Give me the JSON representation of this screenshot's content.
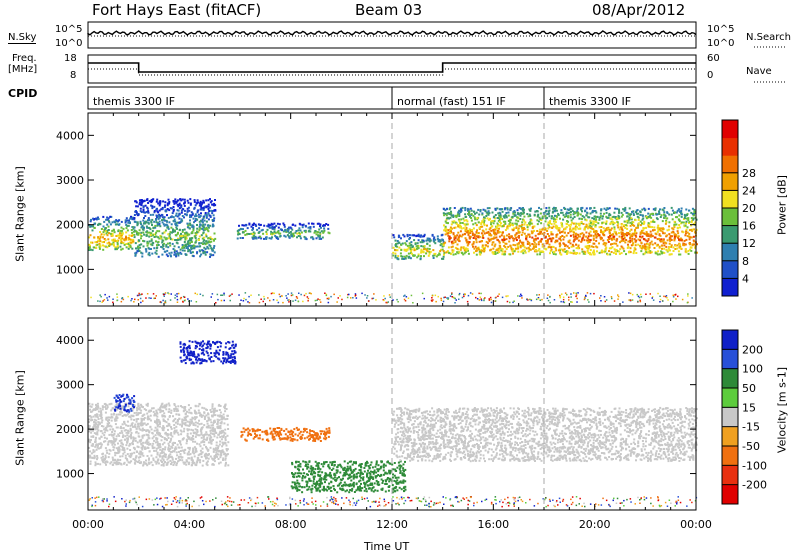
{
  "header": {
    "title": "Fort Hays East (fitACF)",
    "beam": "Beam 03",
    "date": "08/Apr/2012"
  },
  "top_panels": {
    "nsky": {
      "label": "N.Sky",
      "scale_top": "10^5",
      "scale_bottom": "10^0"
    },
    "nsearch": {
      "label": "N.Search",
      "scale_top": "10^5",
      "scale_bottom": "10^0"
    },
    "freq": {
      "label_line1": "Freq.",
      "label_line2": "[MHz]",
      "scale_top": "18",
      "scale_bottom": "8"
    },
    "nave": {
      "label": "Nave",
      "scale_top": "60",
      "scale_bottom": "0"
    },
    "cpid": {
      "label": "CPID",
      "segments": [
        {
          "text": "themis 3300 IF",
          "start_hour": 0
        },
        {
          "text": "normal (fast) 151 IF",
          "start_hour": 12
        },
        {
          "text": "themis 3300 IF",
          "start_hour": 18
        }
      ]
    }
  },
  "axes": {
    "xlabel": "Time UT",
    "x_ticks": [
      "00:00",
      "04:00",
      "08:00",
      "12:00",
      "16:00",
      "20:00",
      "00:00"
    ],
    "ylabel": "Slant Range [km]",
    "y_ticks": [
      "1000",
      "2000",
      "3000",
      "4000"
    ]
  },
  "colorbars": {
    "power": {
      "label": "Power [dB]",
      "ticks": [
        "4",
        "8",
        "12",
        "16",
        "20",
        "24",
        "28"
      ],
      "colors": [
        "#1020d0",
        "#2050c8",
        "#2f7fb0",
        "#3a9a70",
        "#6bbf3a",
        "#f0e020",
        "#f0a000",
        "#f07000",
        "#e83000",
        "#e00000"
      ]
    },
    "velocity": {
      "label": "Velocity [m s-1]",
      "ticks": [
        "200",
        "100",
        "50",
        "15",
        "-15",
        "-50",
        "-100",
        "-200"
      ],
      "colors": [
        "#1020c8",
        "#2850d8",
        "#2e8a38",
        "#5ccc3c",
        "#c8c8c8",
        "#f0a020",
        "#f07010",
        "#e83010",
        "#e00000"
      ]
    }
  },
  "chart_data": [
    {
      "type": "heatmap",
      "name": "Power",
      "xlabel": "Time UT",
      "ylabel": "Slant Range [km]",
      "xlim": [
        0,
        24
      ],
      "ylim": [
        180,
        4500
      ],
      "colorbar_label": "Power [dB]",
      "features": [
        {
          "x": [
            0,
            1.8
          ],
          "y": [
            1450,
            2200
          ],
          "value_db": 20
        },
        {
          "x": [
            1.8,
            5.0
          ],
          "y": [
            1300,
            2600
          ],
          "value_db": 14
        },
        {
          "x": [
            5.8,
            9.5
          ],
          "y": [
            1700,
            2050
          ],
          "value_db": 14
        },
        {
          "x": [
            12.0,
            14.0
          ],
          "y": [
            1250,
            1800
          ],
          "value_db": 18
        },
        {
          "x": [
            14.0,
            24.0
          ],
          "y": [
            1350,
            2400
          ],
          "value_db": 24
        }
      ]
    },
    {
      "type": "heatmap",
      "name": "Velocity",
      "xlabel": "Time UT",
      "ylabel": "Slant Range [km]",
      "xlim": [
        0,
        24
      ],
      "ylim": [
        180,
        4500
      ],
      "colorbar_label": "Velocity [m s-1]",
      "features": [
        {
          "x": [
            0,
            5.5
          ],
          "y": [
            1200,
            2600
          ],
          "value_ms": 0
        },
        {
          "x": [
            1.0,
            1.8
          ],
          "y": [
            2400,
            2800
          ],
          "value_ms": 150
        },
        {
          "x": [
            3.6,
            5.8
          ],
          "y": [
            3500,
            4000
          ],
          "value_ms": 200
        },
        {
          "x": [
            6.0,
            9.5
          ],
          "y": [
            1750,
            2050
          ],
          "value_ms": -50
        },
        {
          "x": [
            8.0,
            12.5
          ],
          "y": [
            600,
            1300
          ],
          "value_ms": 40
        },
        {
          "x": [
            12.0,
            24.0
          ],
          "y": [
            1300,
            2500
          ],
          "value_ms": 0
        }
      ]
    }
  ]
}
